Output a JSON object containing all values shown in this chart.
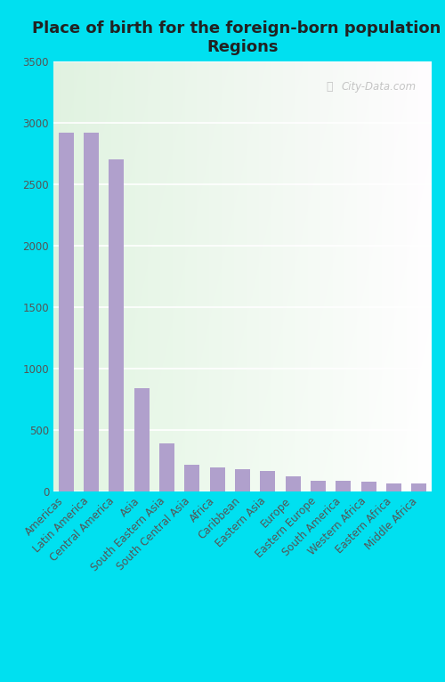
{
  "title": "Place of birth for the foreign-born population -\nRegions",
  "categories": [
    "Americas",
    "Latin America",
    "Central America",
    "Asia",
    "South Eastern Asia",
    "South Central Asia",
    "Africa",
    "Caribbean",
    "Eastern Asia",
    "Europe",
    "Eastern Europe",
    "South America",
    "Western Africa",
    "Eastern Africa",
    "Middle Africa"
  ],
  "values": [
    2920,
    2920,
    2700,
    840,
    390,
    215,
    195,
    175,
    165,
    120,
    85,
    80,
    75,
    65,
    60
  ],
  "bar_color": "#b0a0cc",
  "title_fontsize": 13,
  "tick_fontsize": 8.5,
  "ylim": [
    0,
    3500
  ],
  "yticks": [
    0,
    500,
    1000,
    1500,
    2000,
    2500,
    3000,
    3500
  ],
  "outer_bg": "#00e0f0",
  "watermark": "City-Data.com"
}
